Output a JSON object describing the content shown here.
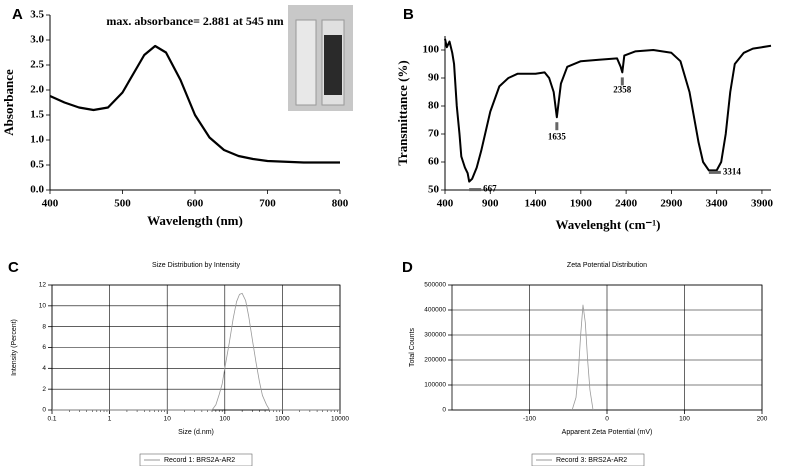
{
  "chart_data": [
    {
      "type": "line",
      "panel_label": "A",
      "annotation": "max. absorbance= 2.881 at 545 nm",
      "x_label": "Wavelength (nm)",
      "y_label": "Absorbance",
      "xlim": [
        400,
        800
      ],
      "xticks": [
        400,
        500,
        600,
        700,
        800
      ],
      "ylim": [
        0,
        3.5
      ],
      "yticks": [
        {
          "value": 0,
          "label": "0.0"
        },
        0.5,
        {
          "value": 1,
          "label": "1.0"
        },
        1.5,
        {
          "value": 2,
          "label": "2.0"
        },
        2.5,
        {
          "value": 3,
          "label": "3.0"
        },
        3.5
      ],
      "grid": false,
      "series": [
        {
          "color": "#000000",
          "x": [
            400,
            420,
            440,
            460,
            480,
            500,
            520,
            530,
            545,
            560,
            580,
            600,
            620,
            640,
            660,
            680,
            700,
            750,
            800
          ],
          "values": [
            1.88,
            1.75,
            1.65,
            1.6,
            1.65,
            1.95,
            2.45,
            2.7,
            2.88,
            2.75,
            2.2,
            1.5,
            1.05,
            0.8,
            0.68,
            0.62,
            0.58,
            0.55,
            0.55
          ]
        }
      ]
    },
    {
      "type": "line",
      "panel_label": "B",
      "x_label": "Wavelenght (cm⁻¹)",
      "y_label": "Transmittance (%)",
      "xlim": [
        400,
        4000
      ],
      "xticks": [
        400,
        900,
        1400,
        1900,
        2400,
        2900,
        3400,
        3900
      ],
      "ylim": [
        50,
        105
      ],
      "yticks": [
        50,
        60,
        70,
        80,
        90,
        100
      ],
      "grid": false,
      "peak_labels": [
        667,
        1635,
        2358,
        3314
      ],
      "series": [
        {
          "color": "#000000",
          "x": [
            400,
            420,
            450,
            480,
            500,
            530,
            560,
            580,
            600,
            620,
            650,
            667,
            700,
            750,
            800,
            900,
            1000,
            1100,
            1200,
            1400,
            1500,
            1550,
            1600,
            1635,
            1680,
            1750,
            1900,
            2100,
            2300,
            2340,
            2358,
            2380,
            2500,
            2700,
            2900,
            3000,
            3100,
            3200,
            3250,
            3314,
            3400,
            3450,
            3500,
            3550,
            3600,
            3700,
            3800,
            3900,
            4000
          ],
          "values": [
            104,
            101,
            103,
            99,
            95,
            80,
            70,
            62,
            60,
            58,
            56,
            53,
            54,
            58,
            64,
            78,
            87,
            90,
            91.5,
            91.5,
            92,
            90,
            85,
            76,
            88,
            94,
            96,
            96.5,
            97,
            94,
            92,
            98,
            99.5,
            100,
            99,
            96,
            85,
            67,
            60,
            57,
            57,
            60,
            70,
            85,
            95,
            99,
            100.5,
            101,
            101.5
          ]
        }
      ]
    },
    {
      "type": "line",
      "panel_label": "C",
      "title": "Size Distribution by Intensity",
      "x_label": "Size (d.nm)",
      "y_label": "Intensity (Percent)",
      "xscale": "log",
      "xlim": [
        0.1,
        10000
      ],
      "xticks": [
        0.1,
        1,
        10,
        100,
        1000,
        10000
      ],
      "ylim": [
        0,
        12
      ],
      "yticks": [
        0,
        2,
        4,
        6,
        8,
        10,
        12
      ],
      "grid": true,
      "series": [
        {
          "name": "Record 1: BRS2A-AR2",
          "color": "#999999",
          "x": [
            0.1,
            0.2,
            0.5,
            1,
            2,
            5,
            10,
            20,
            50,
            60,
            70,
            80,
            90,
            100,
            120,
            140,
            160,
            180,
            200,
            230,
            260,
            300,
            350,
            400,
            450,
            530,
            600,
            1000,
            2000,
            5000,
            10000
          ],
          "values": [
            0,
            0,
            0,
            0,
            0,
            0,
            0,
            0,
            0,
            0,
            0.5,
            1.5,
            2.5,
            4,
            6.5,
            8.8,
            10.4,
            11.1,
            11.2,
            10.5,
            9,
            6.8,
            4.5,
            2.7,
            1.4,
            0.5,
            0,
            0,
            0,
            0,
            0
          ]
        }
      ]
    },
    {
      "type": "line",
      "panel_label": "D",
      "title": "Zeta Potential Distribution",
      "x_label": "Apparent Zeta Potential (mV)",
      "y_label": "Total Counts",
      "xlim": [
        -200,
        200
      ],
      "xticks": [
        -100,
        0,
        100,
        200
      ],
      "ylim": [
        0,
        500000
      ],
      "yticks": [
        0,
        100000,
        200000,
        300000,
        400000,
        500000
      ],
      "grid": true,
      "series": [
        {
          "name": "Record 3: BRS2A-AR2",
          "color": "#999999",
          "x": [
            -45,
            -40,
            -37,
            -34,
            -31,
            -28,
            -25,
            -22,
            -18
          ],
          "values": [
            0,
            50000,
            150000,
            300000,
            420000,
            350000,
            200000,
            80000,
            0
          ]
        }
      ]
    }
  ]
}
